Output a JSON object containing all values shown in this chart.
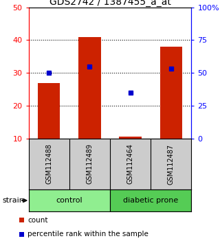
{
  "title": "GDS2742 / 1387455_a_at",
  "samples": [
    "GSM112488",
    "GSM112489",
    "GSM112464",
    "GSM112487"
  ],
  "groups": [
    {
      "name": "control",
      "indices": [
        0,
        1
      ],
      "color": "#90ee90"
    },
    {
      "name": "diabetic prone",
      "indices": [
        2,
        3
      ],
      "color": "#55cc55"
    }
  ],
  "counts": [
    27,
    41,
    10.5,
    38
  ],
  "percentiles": [
    50,
    55,
    35,
    53
  ],
  "bar_color": "#cc2200",
  "dot_color": "#0000cc",
  "left_ylim": [
    10,
    50
  ],
  "right_ylim": [
    0,
    100
  ],
  "left_yticks": [
    10,
    20,
    30,
    40,
    50
  ],
  "right_yticks": [
    0,
    25,
    50,
    75,
    100
  ],
  "right_yticklabels": [
    "0",
    "25",
    "50",
    "75",
    "100%"
  ],
  "gridlines": [
    20,
    30,
    40
  ],
  "background_color": "#ffffff",
  "bar_width": 0.55,
  "sample_box_color": "#cccccc",
  "legend_count_label": "count",
  "legend_pct_label": "percentile rank within the sample"
}
